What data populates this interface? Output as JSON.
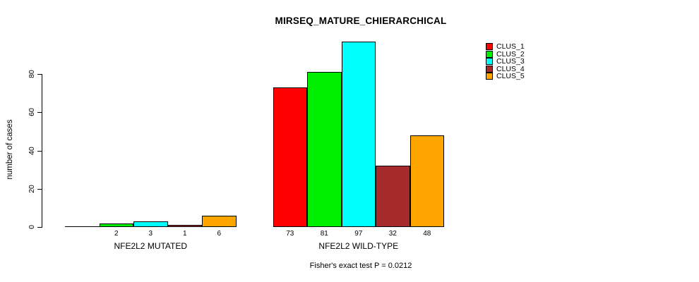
{
  "chart_data": {
    "type": "bar",
    "title": "MIRSEQ_MATURE_CHIERARCHICAL",
    "ylabel": "number of cases",
    "xlabel": "",
    "categories": [
      "NFE2L2 MUTATED",
      "NFE2L2 WILD-TYPE"
    ],
    "series": [
      {
        "name": "CLUS_1",
        "color": "#ff0000",
        "values": [
          0,
          73
        ]
      },
      {
        "name": "CLUS_2",
        "color": "#00ee00",
        "values": [
          2,
          81
        ]
      },
      {
        "name": "CLUS_3",
        "color": "#00ffff",
        "values": [
          3,
          97
        ]
      },
      {
        "name": "CLUS_4",
        "color": "#a52a2a",
        "values": [
          1,
          32
        ]
      },
      {
        "name": "CLUS_5",
        "color": "#ffa500",
        "values": [
          6,
          48
        ]
      }
    ],
    "bar_value_labels": [
      "2",
      "3",
      "1",
      "6",
      "73",
      "81",
      "97",
      "32",
      "48"
    ],
    "yticks": [
      0,
      20,
      40,
      60,
      80
    ],
    "ylim": [
      0,
      97
    ],
    "grid": false,
    "legend_position": "top-right",
    "legend_entries": [
      "CLUS_1",
      "CLUS_2",
      "CLUS_3",
      "CLUS_4",
      "CLUS_5"
    ],
    "annotation": "Fisher's exact test P = 0.0212"
  }
}
